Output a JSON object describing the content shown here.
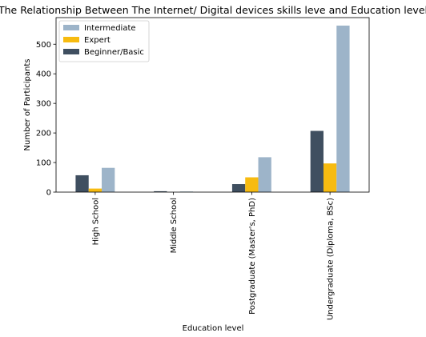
{
  "chart_data": {
    "type": "bar",
    "title": "The Relationship Between The Internet/ Digital devices skills leve and Education level",
    "xlabel": "Education level",
    "ylabel": "Number of Participants",
    "categories": [
      "High School",
      "Middle School",
      "Postgraduate (Master's, PhD)",
      "Undergraduate (Diploma, BSc)"
    ],
    "series": [
      {
        "name": "Beginner/Basic",
        "values": [
          57,
          3,
          27,
          207
        ],
        "color": "#3f4f60"
      },
      {
        "name": "Expert",
        "values": [
          12,
          0,
          50,
          97
        ],
        "color": "#f7bb10"
      },
      {
        "name": "Intermediate",
        "values": [
          82,
          2,
          118,
          563
        ],
        "color": "#9db4c9"
      }
    ],
    "legend_order": [
      "Intermediate",
      "Expert",
      "Beginner/Basic"
    ],
    "legend_position": "upper-left",
    "ylim": [
      0,
      590
    ],
    "yticks": [
      0,
      100,
      200,
      300,
      400,
      500
    ],
    "grid": false
  }
}
